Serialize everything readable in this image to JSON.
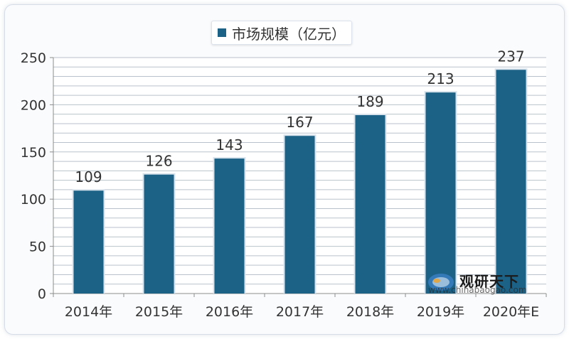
{
  "chart_data": {
    "type": "bar",
    "title": "",
    "legend": {
      "label": "市场规模（亿元）",
      "position": "top-center"
    },
    "categories": [
      "2014年",
      "2015年",
      "2016年",
      "2017年",
      "2018年",
      "2019年",
      "2020年E"
    ],
    "series": [
      {
        "name": "市场规模（亿元）",
        "values": [
          109,
          126,
          143,
          167,
          189,
          213,
          237
        ]
      }
    ],
    "data_labels": [
      "109",
      "126",
      "143",
      "167",
      "189",
      "213",
      "237"
    ],
    "y_ticks": [
      "0",
      "50",
      "100",
      "150",
      "200",
      "250"
    ],
    "ylim": [
      0,
      250
    ],
    "grid": true,
    "bar_color": "#1c6287",
    "grid_color": "#b9c2cc"
  },
  "watermark": {
    "name": "观研天下",
    "url": "www.chinabaogao.com"
  }
}
